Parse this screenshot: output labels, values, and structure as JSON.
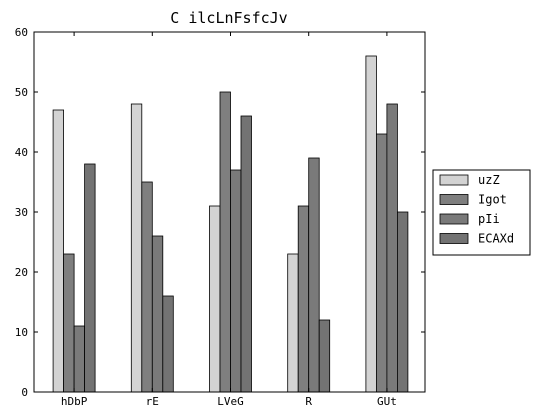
{
  "chart_data": {
    "type": "bar",
    "title": "C ilcLnFsfcJv",
    "xlabel": "",
    "ylabel": "",
    "categories": [
      "hDbP",
      "rE",
      "LVeG",
      "R",
      "GUt"
    ],
    "ylim": [
      0,
      60
    ],
    "yticks": [
      0,
      10,
      20,
      30,
      40,
      50,
      60
    ],
    "grid": false,
    "legend_position": "right",
    "series": [
      {
        "name": "uzZ",
        "color": "#d3d3d3",
        "values": [
          47,
          48,
          31,
          23,
          56
        ]
      },
      {
        "name": "Igot",
        "color": "#7f7f7f",
        "values": [
          23,
          35,
          50,
          31,
          43
        ]
      },
      {
        "name": "pIi",
        "color": "#7a7a7a",
        "values": [
          11,
          26,
          37,
          39,
          48
        ]
      },
      {
        "name": "ECAXd",
        "color": "#737373",
        "values": [
          38,
          16,
          46,
          12,
          30
        ]
      }
    ]
  }
}
